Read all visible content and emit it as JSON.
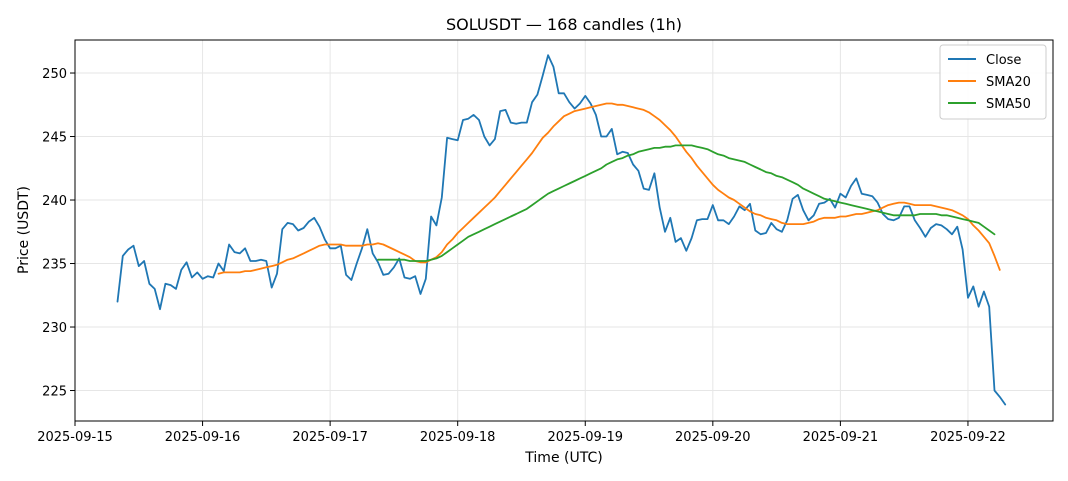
{
  "chart_data": {
    "type": "line",
    "title": "SOLUSDT — 168 candles (1h)",
    "xlabel": "Time (UTC)",
    "ylabel": "Price (USDT)",
    "x_start": "2025-09-15 08:00",
    "x_step_hours": 1,
    "xlim": [
      "2025-09-15 00:00",
      "2025-09-22 16:00"
    ],
    "ylim": [
      222.6,
      252.6
    ],
    "x_ticks": [
      "2025-09-15",
      "2025-09-16",
      "2025-09-17",
      "2025-09-18",
      "2025-09-19",
      "2025-09-20",
      "2025-09-21",
      "2025-09-22"
    ],
    "y_ticks": [
      225,
      230,
      235,
      240,
      245,
      250
    ],
    "grid": true,
    "legend_position": "top-right",
    "series": [
      {
        "name": "Close",
        "color": "#1f77b4",
        "start_index": 0,
        "values": [
          232.0,
          235.6,
          236.1,
          236.4,
          234.8,
          235.2,
          233.4,
          233.0,
          231.4,
          233.4,
          233.3,
          233.0,
          234.5,
          235.1,
          233.9,
          234.3,
          233.8,
          234.0,
          233.9,
          235.0,
          234.4,
          236.5,
          235.9,
          235.8,
          236.2,
          235.2,
          235.2,
          235.3,
          235.2,
          233.1,
          234.2,
          237.7,
          238.2,
          238.1,
          237.6,
          237.8,
          238.3,
          238.6,
          237.9,
          236.9,
          236.2,
          236.2,
          236.4,
          234.1,
          233.7,
          235.0,
          236.2,
          237.7,
          235.8,
          235.1,
          234.1,
          234.2,
          234.7,
          235.4,
          233.9,
          233.8,
          234.0,
          232.6,
          233.8,
          238.7,
          238.0,
          240.2,
          244.9,
          244.8,
          244.7,
          246.3,
          246.4,
          246.7,
          246.3,
          245.0,
          244.3,
          244.8,
          247.0,
          247.1,
          246.1,
          246.0,
          246.1,
          246.1,
          247.7,
          248.3,
          249.8,
          251.4,
          250.5,
          248.4,
          248.4,
          247.7,
          247.2,
          247.6,
          248.2,
          247.6,
          246.7,
          245.0,
          245.0,
          245.6,
          243.6,
          243.8,
          243.7,
          242.8,
          242.3,
          240.9,
          240.8,
          242.1,
          239.4,
          237.5,
          238.6,
          236.7,
          237.0,
          236.0,
          237.0,
          238.4,
          238.5,
          238.5,
          239.6,
          238.4,
          238.4,
          238.1,
          238.7,
          239.5,
          239.2,
          239.7,
          237.6,
          237.3,
          237.4,
          238.2,
          237.7,
          237.5,
          238.4,
          240.1,
          240.4,
          239.2,
          238.4,
          238.8,
          239.7,
          239.8,
          240.1,
          239.4,
          240.5,
          240.2,
          241.1,
          241.7,
          240.5,
          240.4,
          240.3,
          239.8,
          238.9,
          238.5,
          238.4,
          238.6,
          239.5,
          239.5,
          238.4,
          237.8,
          237.1,
          237.8,
          238.1,
          238.0,
          237.7,
          237.3,
          237.9,
          236.1,
          232.3,
          233.2,
          231.6,
          232.8,
          231.6,
          225.0,
          224.5,
          223.9
        ]
      },
      {
        "name": "SMA20",
        "color": "#ff7f0e",
        "start_index": 19,
        "values": [
          234.2,
          234.3,
          234.3,
          234.3,
          234.3,
          234.4,
          234.4,
          234.5,
          234.6,
          234.7,
          234.8,
          234.9,
          235.1,
          235.3,
          235.4,
          235.6,
          235.8,
          236.0,
          236.2,
          236.4,
          236.5,
          236.5,
          236.5,
          236.5,
          236.4,
          236.4,
          236.4,
          236.4,
          236.5,
          236.5,
          236.6,
          236.5,
          236.3,
          236.1,
          235.9,
          235.7,
          235.5,
          235.2,
          235.1,
          235.1,
          235.3,
          235.5,
          235.9,
          236.5,
          236.9,
          237.4,
          237.8,
          238.2,
          238.6,
          239.0,
          239.4,
          239.8,
          240.2,
          240.7,
          241.2,
          241.7,
          242.2,
          242.7,
          243.2,
          243.7,
          244.3,
          244.9,
          245.3,
          245.8,
          246.2,
          246.6,
          246.8,
          247.0,
          247.1,
          247.2,
          247.3,
          247.4,
          247.5,
          247.6,
          247.6,
          247.5,
          247.5,
          247.4,
          247.3,
          247.2,
          247.1,
          246.9,
          246.6,
          246.3,
          245.9,
          245.5,
          245.0,
          244.4,
          243.8,
          243.3,
          242.7,
          242.2,
          241.7,
          241.2,
          240.8,
          240.5,
          240.2,
          240.0,
          239.7,
          239.4,
          239.1,
          238.9,
          238.8,
          238.6,
          238.5,
          238.4,
          238.2,
          238.1,
          238.1,
          238.1,
          238.1,
          238.2,
          238.3,
          238.5,
          238.6,
          238.6,
          238.6,
          238.7,
          238.7,
          238.8,
          238.9,
          238.9,
          239.0,
          239.1,
          239.2,
          239.4,
          239.6,
          239.7,
          239.8,
          239.8,
          239.7,
          239.6,
          239.6,
          239.6,
          239.6,
          239.5,
          239.4,
          239.3,
          239.2,
          239.0,
          238.8,
          238.5,
          238.0,
          237.6,
          237.1,
          236.6,
          235.6,
          234.5
        ]
      },
      {
        "name": "SMA50",
        "color": "#2ca02c",
        "start_index": 49,
        "values": [
          235.3,
          235.3,
          235.3,
          235.3,
          235.3,
          235.3,
          235.2,
          235.2,
          235.2,
          235.2,
          235.3,
          235.4,
          235.6,
          235.9,
          236.2,
          236.5,
          236.8,
          237.1,
          237.3,
          237.5,
          237.7,
          237.9,
          238.1,
          238.3,
          238.5,
          238.7,
          238.9,
          239.1,
          239.3,
          239.6,
          239.9,
          240.2,
          240.5,
          240.7,
          240.9,
          241.1,
          241.3,
          241.5,
          241.7,
          241.9,
          242.1,
          242.3,
          242.5,
          242.8,
          243.0,
          243.2,
          243.3,
          243.5,
          243.6,
          243.8,
          243.9,
          244.0,
          244.1,
          244.1,
          244.2,
          244.2,
          244.3,
          244.3,
          244.3,
          244.3,
          244.2,
          244.1,
          244.0,
          243.8,
          243.6,
          243.5,
          243.3,
          243.2,
          243.1,
          243.0,
          242.8,
          242.6,
          242.4,
          242.2,
          242.1,
          241.9,
          241.8,
          241.6,
          241.4,
          241.2,
          240.9,
          240.7,
          240.5,
          240.3,
          240.1,
          240.0,
          239.9,
          239.8,
          239.7,
          239.6,
          239.5,
          239.4,
          239.3,
          239.2,
          239.1,
          239.0,
          238.9,
          238.8,
          238.8,
          238.8,
          238.8,
          238.8,
          238.9,
          238.9,
          238.9,
          238.9,
          238.8,
          238.8,
          238.7,
          238.6,
          238.5,
          238.4,
          238.3,
          238.2,
          237.9,
          237.6,
          237.3
        ]
      }
    ]
  }
}
